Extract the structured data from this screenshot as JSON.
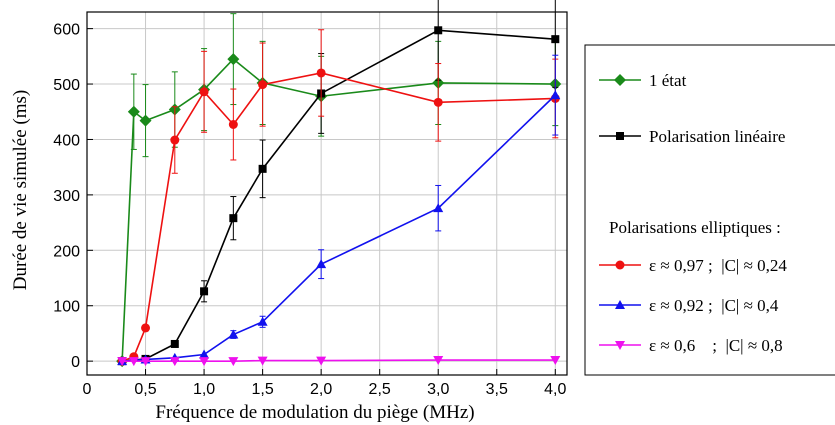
{
  "chart_data": {
    "type": "line",
    "xlabel": "Fréquence de modulation du piège (MHz)",
    "ylabel": "Durée de vie simulée  (ms)",
    "xlim": [
      0,
      4.1
    ],
    "ylim": [
      -25,
      630
    ],
    "x_ticks": [
      {
        "value": 0,
        "label": "0"
      },
      {
        "value": 0.5,
        "label": "0,5"
      },
      {
        "value": 1.0,
        "label": "1,0"
      },
      {
        "value": 1.5,
        "label": "1,5"
      },
      {
        "value": 2.0,
        "label": "2,0"
      },
      {
        "value": 2.5,
        "label": "2,5"
      },
      {
        "value": 3.0,
        "label": "3,0"
      },
      {
        "value": 3.5,
        "label": "3,5"
      },
      {
        "value": 4.0,
        "label": "4,0"
      }
    ],
    "y_ticks": [
      {
        "value": 0,
        "label": "0"
      },
      {
        "value": 100,
        "label": "100"
      },
      {
        "value": 200,
        "label": "200"
      },
      {
        "value": 300,
        "label": "300"
      },
      {
        "value": 400,
        "label": "400"
      },
      {
        "value": 500,
        "label": "500"
      },
      {
        "value": 600,
        "label": "600"
      }
    ],
    "grid": true,
    "legend_position": "right",
    "legend_group_heading": "Polarisations elliptiques :",
    "series": [
      {
        "name": "1 état",
        "color": "#1a8a1a",
        "marker": "diamond",
        "points": [
          {
            "x": 0.3,
            "y": 0,
            "err": 0
          },
          {
            "x": 0.4,
            "y": 450,
            "err": 68
          },
          {
            "x": 0.5,
            "y": 434,
            "err": 65
          },
          {
            "x": 0.75,
            "y": 454,
            "err": 68
          },
          {
            "x": 1.0,
            "y": 490,
            "err": 74
          },
          {
            "x": 1.25,
            "y": 545,
            "err": 82
          },
          {
            "x": 1.5,
            "y": 502,
            "err": 75
          },
          {
            "x": 2.0,
            "y": 478,
            "err": 72
          },
          {
            "x": 3.0,
            "y": 502,
            "err": 75
          },
          {
            "x": 4.0,
            "y": 500,
            "err": 75
          }
        ]
      },
      {
        "name": "Polarisation linéaire",
        "color": "#000000",
        "marker": "square",
        "points": [
          {
            "x": 0.3,
            "y": 0,
            "err": 0
          },
          {
            "x": 0.5,
            "y": 4,
            "err": 0
          },
          {
            "x": 0.75,
            "y": 31,
            "err": 0
          },
          {
            "x": 1.0,
            "y": 126,
            "err": 19
          },
          {
            "x": 1.25,
            "y": 258,
            "err": 39
          },
          {
            "x": 1.5,
            "y": 347,
            "err": 52
          },
          {
            "x": 2.0,
            "y": 483,
            "err": 72
          },
          {
            "x": 3.0,
            "y": 597,
            "err": 90
          },
          {
            "x": 4.0,
            "y": 581,
            "err": 87
          }
        ]
      },
      {
        "name": "ε ≈ 0,97 ;  |C| ≈ 0,24",
        "color": "#ee1111",
        "marker": "circle",
        "points": [
          {
            "x": 0.3,
            "y": 0,
            "err": 0
          },
          {
            "x": 0.4,
            "y": 8,
            "err": 0
          },
          {
            "x": 0.5,
            "y": 60,
            "err": 0
          },
          {
            "x": 0.75,
            "y": 399,
            "err": 60
          },
          {
            "x": 1.0,
            "y": 486,
            "err": 73
          },
          {
            "x": 1.25,
            "y": 427,
            "err": 64
          },
          {
            "x": 1.5,
            "y": 499,
            "err": 75
          },
          {
            "x": 2.0,
            "y": 520,
            "err": 78
          },
          {
            "x": 3.0,
            "y": 467,
            "err": 70
          },
          {
            "x": 4.0,
            "y": 474,
            "err": 71
          }
        ]
      },
      {
        "name": "ε ≈ 0,92 ;  |C| ≈ 0,4",
        "color": "#1111ee",
        "marker": "triangle-up",
        "points": [
          {
            "x": 0.3,
            "y": 0,
            "err": 0
          },
          {
            "x": 0.5,
            "y": 3,
            "err": 0
          },
          {
            "x": 0.75,
            "y": 6,
            "err": 0
          },
          {
            "x": 1.0,
            "y": 12,
            "err": 0
          },
          {
            "x": 1.25,
            "y": 48,
            "err": 7
          },
          {
            "x": 1.5,
            "y": 71,
            "err": 10
          },
          {
            "x": 2.0,
            "y": 175,
            "err": 26
          },
          {
            "x": 3.0,
            "y": 276,
            "err": 41
          },
          {
            "x": 4.0,
            "y": 480,
            "err": 72
          }
        ]
      },
      {
        "name": "ε ≈ 0,6    ;  |C| ≈ 0,8",
        "color": "#ee11ee",
        "marker": "triangle-down",
        "points": [
          {
            "x": 0.3,
            "y": 0,
            "err": 0
          },
          {
            "x": 0.4,
            "y": 0,
            "err": 0
          },
          {
            "x": 0.5,
            "y": 0,
            "err": 0
          },
          {
            "x": 0.75,
            "y": 0,
            "err": 0
          },
          {
            "x": 1.0,
            "y": 0,
            "err": 0
          },
          {
            "x": 1.25,
            "y": 0,
            "err": 0
          },
          {
            "x": 1.5,
            "y": 1,
            "err": 0
          },
          {
            "x": 2.0,
            "y": 1,
            "err": 0
          },
          {
            "x": 3.0,
            "y": 2,
            "err": 0
          },
          {
            "x": 4.0,
            "y": 2,
            "err": 0
          }
        ]
      }
    ]
  }
}
